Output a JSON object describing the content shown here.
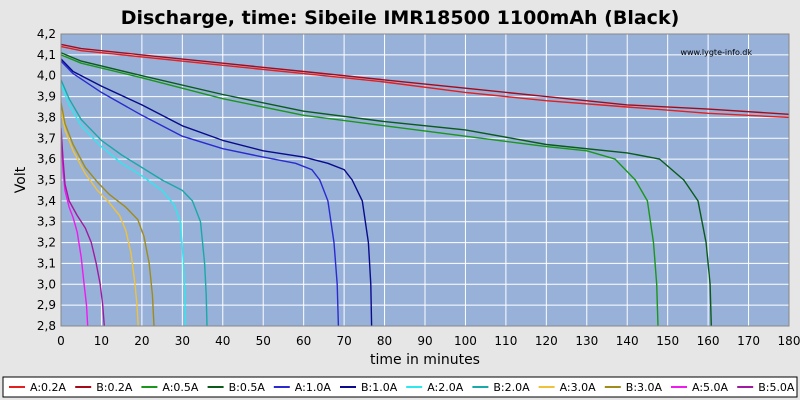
{
  "chart_data": {
    "type": "line",
    "title": "Discharge, time: Sibeile IMR18500 1100mAh (Black)",
    "xlabel": "time in minutes",
    "ylabel": "Volt",
    "watermark": "www.lygte-info.dk",
    "xlim": [
      0,
      180
    ],
    "ylim": [
      2.8,
      4.2
    ],
    "xticks": [
      0,
      10,
      20,
      30,
      40,
      50,
      60,
      70,
      80,
      90,
      100,
      110,
      120,
      130,
      140,
      150,
      160,
      170,
      180
    ],
    "yticks": [
      "2,8",
      "2,9",
      "3,0",
      "3,1",
      "3,2",
      "3,3",
      "3,4",
      "3,5",
      "3,6",
      "3,7",
      "3,8",
      "3,9",
      "4,0",
      "4,1",
      "4,2"
    ],
    "grid": true,
    "legend_position": "bottom",
    "background_color": "#97b1d9",
    "series": [
      {
        "name": "A:0.2A",
        "color": "#e51e1e",
        "points": [
          [
            0,
            4.14
          ],
          [
            5,
            4.12
          ],
          [
            20,
            4.09
          ],
          [
            40,
            4.05
          ],
          [
            60,
            4.01
          ],
          [
            80,
            3.97
          ],
          [
            100,
            3.92
          ],
          [
            120,
            3.88
          ],
          [
            140,
            3.85
          ],
          [
            160,
            3.82
          ],
          [
            180,
            3.8
          ]
        ]
      },
      {
        "name": "B:0.2A",
        "color": "#a50a1a",
        "points": [
          [
            0,
            4.15
          ],
          [
            5,
            4.13
          ],
          [
            20,
            4.1
          ],
          [
            40,
            4.06
          ],
          [
            60,
            4.02
          ],
          [
            80,
            3.98
          ],
          [
            100,
            3.94
          ],
          [
            120,
            3.9
          ],
          [
            140,
            3.86
          ],
          [
            160,
            3.84
          ],
          [
            180,
            3.815
          ]
        ]
      },
      {
        "name": "A:0.5A",
        "color": "#1a961a",
        "points": [
          [
            0,
            4.1
          ],
          [
            5,
            4.06
          ],
          [
            20,
            3.99
          ],
          [
            40,
            3.89
          ],
          [
            60,
            3.81
          ],
          [
            80,
            3.76
          ],
          [
            100,
            3.71
          ],
          [
            120,
            3.66
          ],
          [
            130,
            3.64
          ],
          [
            137,
            3.6
          ],
          [
            142,
            3.5
          ],
          [
            145,
            3.4
          ],
          [
            146.5,
            3.2
          ],
          [
            147.3,
            3.0
          ],
          [
            147.6,
            2.8
          ]
        ]
      },
      {
        "name": "B:0.5A",
        "color": "#0a5a1a",
        "points": [
          [
            0,
            4.11
          ],
          [
            5,
            4.07
          ],
          [
            20,
            4.0
          ],
          [
            40,
            3.91
          ],
          [
            60,
            3.83
          ],
          [
            80,
            3.78
          ],
          [
            100,
            3.74
          ],
          [
            120,
            3.67
          ],
          [
            140,
            3.63
          ],
          [
            148,
            3.6
          ],
          [
            154,
            3.5
          ],
          [
            157.5,
            3.4
          ],
          [
            159.5,
            3.2
          ],
          [
            160.5,
            3.0
          ],
          [
            160.8,
            2.8
          ]
        ]
      },
      {
        "name": "A:1.0A",
        "color": "#2a2acf",
        "points": [
          [
            0,
            4.07
          ],
          [
            3,
            4.01
          ],
          [
            10,
            3.92
          ],
          [
            20,
            3.81
          ],
          [
            30,
            3.71
          ],
          [
            40,
            3.65
          ],
          [
            50,
            3.61
          ],
          [
            58,
            3.58
          ],
          [
            62,
            3.55
          ],
          [
            64,
            3.5
          ],
          [
            66,
            3.4
          ],
          [
            67.5,
            3.2
          ],
          [
            68.3,
            3.0
          ],
          [
            68.6,
            2.8
          ]
        ]
      },
      {
        "name": "B:1.0A",
        "color": "#0a0a8a",
        "points": [
          [
            0,
            4.08
          ],
          [
            3,
            4.02
          ],
          [
            10,
            3.95
          ],
          [
            20,
            3.86
          ],
          [
            30,
            3.76
          ],
          [
            40,
            3.69
          ],
          [
            50,
            3.64
          ],
          [
            60,
            3.61
          ],
          [
            66,
            3.58
          ],
          [
            70,
            3.55
          ],
          [
            72,
            3.5
          ],
          [
            74.5,
            3.4
          ],
          [
            76,
            3.2
          ],
          [
            76.6,
            3.0
          ],
          [
            76.8,
            2.8
          ]
        ]
      },
      {
        "name": "A:2.0A",
        "color": "#2ee8ee",
        "points": [
          [
            0,
            3.96
          ],
          [
            2,
            3.86
          ],
          [
            5,
            3.76
          ],
          [
            10,
            3.66
          ],
          [
            15,
            3.58
          ],
          [
            20,
            3.52
          ],
          [
            25,
            3.45
          ],
          [
            28,
            3.38
          ],
          [
            29.5,
            3.3
          ],
          [
            30.3,
            3.1
          ],
          [
            30.6,
            2.95
          ],
          [
            30.8,
            2.8
          ]
        ]
      },
      {
        "name": "B:2.0A",
        "color": "#1aa8a8",
        "points": [
          [
            0,
            3.98
          ],
          [
            2,
            3.89
          ],
          [
            5,
            3.79
          ],
          [
            10,
            3.69
          ],
          [
            15,
            3.62
          ],
          [
            20,
            3.56
          ],
          [
            25,
            3.5
          ],
          [
            30,
            3.45
          ],
          [
            32.5,
            3.4
          ],
          [
            34.5,
            3.3
          ],
          [
            35.5,
            3.1
          ],
          [
            35.9,
            2.95
          ],
          [
            36.1,
            2.8
          ]
        ]
      },
      {
        "name": "A:3.0A",
        "color": "#f0c23a",
        "points": [
          [
            0,
            3.84
          ],
          [
            1,
            3.74
          ],
          [
            3,
            3.64
          ],
          [
            6,
            3.53
          ],
          [
            9,
            3.45
          ],
          [
            12,
            3.39
          ],
          [
            14.5,
            3.33
          ],
          [
            16,
            3.26
          ],
          [
            17.3,
            3.15
          ],
          [
            18.3,
            3.0
          ],
          [
            18.8,
            2.9
          ],
          [
            19.1,
            2.8
          ]
        ]
      },
      {
        "name": "B:3.0A",
        "color": "#a08c1a",
        "points": [
          [
            0,
            3.87
          ],
          [
            1,
            3.77
          ],
          [
            3,
            3.67
          ],
          [
            6,
            3.56
          ],
          [
            9,
            3.49
          ],
          [
            12,
            3.43
          ],
          [
            16,
            3.37
          ],
          [
            19,
            3.31
          ],
          [
            20.5,
            3.23
          ],
          [
            21.8,
            3.1
          ],
          [
            22.6,
            2.95
          ],
          [
            23,
            2.8
          ]
        ]
      },
      {
        "name": "A:5.0A",
        "color": "#ee1aee",
        "points": [
          [
            0,
            3.72
          ],
          [
            0.5,
            3.55
          ],
          [
            1,
            3.45
          ],
          [
            2,
            3.37
          ],
          [
            3,
            3.32
          ],
          [
            4,
            3.25
          ],
          [
            5,
            3.13
          ],
          [
            5.7,
            3.0
          ],
          [
            6.3,
            2.9
          ],
          [
            6.6,
            2.8
          ]
        ]
      },
      {
        "name": "B:5.0A",
        "color": "#a01aa0",
        "points": [
          [
            0,
            3.75
          ],
          [
            0.5,
            3.6
          ],
          [
            1,
            3.48
          ],
          [
            2,
            3.4
          ],
          [
            4,
            3.33
          ],
          [
            6,
            3.27
          ],
          [
            7.5,
            3.2
          ],
          [
            8.7,
            3.1
          ],
          [
            9.7,
            3.0
          ],
          [
            10.3,
            2.9
          ],
          [
            10.7,
            2.8
          ]
        ]
      }
    ]
  }
}
